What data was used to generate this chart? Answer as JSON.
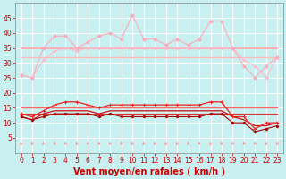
{
  "bg_color": "#c8f0f0",
  "grid_color": "#ffffff",
  "xlabel": "Vent moyen/en rafales ( km/h )",
  "x": [
    0,
    1,
    2,
    3,
    4,
    5,
    6,
    7,
    8,
    9,
    10,
    11,
    12,
    13,
    14,
    15,
    16,
    17,
    18,
    19,
    20,
    21,
    22,
    23
  ],
  "ylim": [
    0,
    50
  ],
  "yticks": [
    5,
    10,
    15,
    20,
    25,
    30,
    35,
    40,
    45
  ],
  "series": [
    {
      "name": "rafales_variable",
      "color": "#ffaabb",
      "lw": 0.8,
      "marker": "D",
      "ms": 1.8,
      "zorder": 3,
      "values": [
        26,
        25,
        35,
        39,
        39,
        35,
        37,
        39,
        40,
        38,
        46,
        38,
        38,
        36,
        38,
        36,
        38,
        44,
        44,
        35,
        29,
        25,
        29,
        32
      ]
    },
    {
      "name": "rafales_trend_upper",
      "color": "#ffaaaa",
      "lw": 1.3,
      "marker": null,
      "ms": 0,
      "zorder": 2,
      "values": [
        35,
        35,
        35,
        35,
        35,
        35,
        35,
        35,
        35,
        35,
        35,
        35,
        35,
        35,
        35,
        35,
        35,
        35,
        35,
        35,
        35,
        35,
        35,
        35
      ]
    },
    {
      "name": "rafales_curve_smooth",
      "color": "#ffbbcc",
      "lw": 0.8,
      "marker": "D",
      "ms": 1.5,
      "zorder": 2,
      "values": [
        26,
        25,
        31,
        34,
        35,
        34,
        35,
        35,
        35,
        35,
        35,
        35,
        35,
        35,
        35,
        35,
        35,
        35,
        35,
        35,
        31,
        29,
        25,
        32
      ]
    },
    {
      "name": "rafales_trend_lower",
      "color": "#ffbbbb",
      "lw": 1.0,
      "marker": null,
      "ms": 0,
      "zorder": 2,
      "values": [
        32,
        32,
        32,
        32,
        32,
        32,
        32,
        32,
        32,
        32,
        32,
        32,
        32,
        32,
        32,
        32,
        32,
        32,
        32,
        32,
        32,
        32,
        32,
        32
      ]
    },
    {
      "name": "vent_variable",
      "color": "#ee2222",
      "lw": 0.9,
      "marker": "+",
      "ms": 3.0,
      "zorder": 4,
      "values": [
        13,
        12,
        14,
        16,
        17,
        17,
        16,
        15,
        16,
        16,
        16,
        16,
        16,
        16,
        16,
        16,
        16,
        17,
        17,
        12,
        12,
        8,
        10,
        10
      ]
    },
    {
      "name": "vent_trend_upper",
      "color": "#ff6666",
      "lw": 1.0,
      "marker": null,
      "ms": 0,
      "zorder": 2,
      "values": [
        15,
        15,
        15,
        15,
        15,
        15,
        15,
        15,
        15,
        15,
        15,
        15,
        15,
        15,
        15,
        15,
        15,
        15,
        15,
        15,
        15,
        15,
        15,
        15
      ]
    },
    {
      "name": "vent_smooth",
      "color": "#cc1111",
      "lw": 0.9,
      "marker": null,
      "ms": 0,
      "zorder": 3,
      "values": [
        12,
        11,
        13,
        14,
        14,
        14,
        14,
        13,
        14,
        14,
        14,
        14,
        14,
        14,
        14,
        14,
        14,
        14,
        14,
        12,
        11,
        9,
        9,
        10
      ]
    },
    {
      "name": "vent_trend_lower",
      "color": "#dd3333",
      "lw": 0.8,
      "marker": null,
      "ms": 0,
      "zorder": 2,
      "values": [
        13,
        13,
        13,
        13,
        13,
        13,
        13,
        13,
        13,
        13,
        13,
        13,
        13,
        13,
        13,
        13,
        13,
        13,
        13,
        13,
        13,
        13,
        13,
        13
      ]
    },
    {
      "name": "vent_min_curve",
      "color": "#aa0000",
      "lw": 0.8,
      "marker": "D",
      "ms": 1.5,
      "zorder": 3,
      "values": [
        12,
        11,
        12,
        13,
        13,
        13,
        13,
        12,
        13,
        12,
        12,
        12,
        12,
        12,
        12,
        12,
        12,
        13,
        13,
        10,
        10,
        7,
        8,
        9
      ]
    }
  ],
  "arrow_color": "#ff8888",
  "xlabel_color": "#cc0000",
  "xlabel_fontsize": 7,
  "tick_color": "#cc0000",
  "tick_fontsize": 5.5
}
